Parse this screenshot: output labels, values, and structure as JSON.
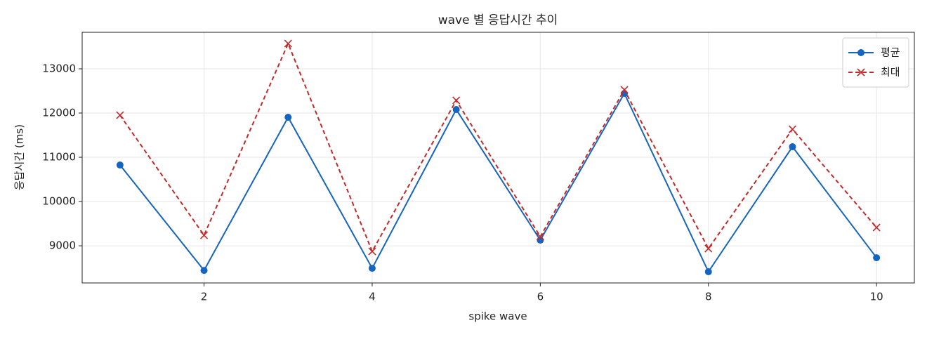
{
  "chart_data": {
    "type": "line",
    "title": "wave 별 응답시간 추이",
    "xlabel": "spike wave",
    "ylabel": "응답시간 (ms)",
    "x": [
      1,
      2,
      3,
      4,
      5,
      6,
      7,
      8,
      9,
      10
    ],
    "series": [
      {
        "name": "평균",
        "color": "#1565c0",
        "linestyle": "solid",
        "marker": "o",
        "values": [
          10825,
          8444,
          11905,
          8492,
          12079,
          9127,
          12444,
          8413,
          11238,
          8730
        ]
      },
      {
        "name": "최대",
        "color": "#c62828",
        "linestyle": "dashed",
        "marker": "x",
        "values": [
          11952,
          9238,
          13571,
          8873,
          12286,
          9206,
          12524,
          8937,
          11635,
          9413
        ]
      }
    ],
    "xlim": [
      0.55,
      10.45
    ],
    "xticks": [
      2,
      4,
      6,
      8,
      10
    ],
    "ylim": [
      8160,
      13825
    ],
    "yticks": [
      9000,
      10000,
      11000,
      12000,
      13000
    ],
    "grid": true,
    "legend": "upper right"
  }
}
